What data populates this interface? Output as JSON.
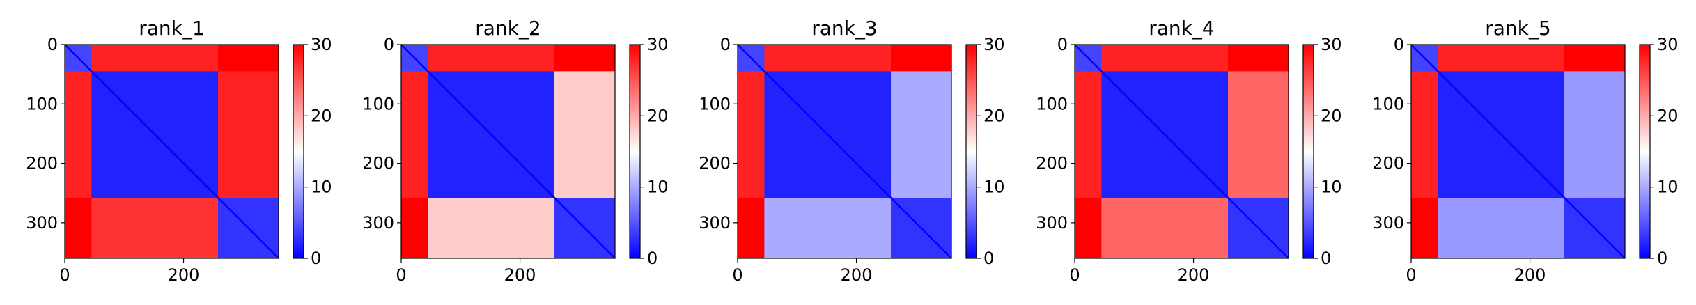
{
  "chart_data": [
    {
      "type": "heatmap",
      "title": "rank_1",
      "x_ticks": [
        0,
        200
      ],
      "y_ticks": [
        0,
        100,
        200,
        300
      ],
      "xlim": [
        0,
        360
      ],
      "ylim": [
        360,
        0
      ],
      "colorbar": {
        "ticks": [
          0,
          10,
          20,
          30
        ],
        "range": [
          0,
          30
        ],
        "colors": [
          "#0000ff",
          "#ffffff",
          "#ff0000"
        ]
      },
      "blocks": [
        {
          "start": 0,
          "end": 45
        },
        {
          "start": 45,
          "end": 258
        },
        {
          "start": 258,
          "end": 360
        }
      ],
      "block_values": [
        [
          4,
          28,
          30
        ],
        [
          28,
          2,
          28
        ],
        [
          30,
          27,
          3
        ]
      ]
    },
    {
      "type": "heatmap",
      "title": "rank_2",
      "x_ticks": [
        0,
        200
      ],
      "y_ticks": [
        0,
        100,
        200,
        300
      ],
      "xlim": [
        0,
        360
      ],
      "ylim": [
        360,
        0
      ],
      "colorbar": {
        "ticks": [
          0,
          10,
          20,
          30
        ],
        "range": [
          0,
          30
        ],
        "colors": [
          "#0000ff",
          "#ffffff",
          "#ff0000"
        ]
      },
      "blocks": [
        {
          "start": 0,
          "end": 45
        },
        {
          "start": 45,
          "end": 258
        },
        {
          "start": 258,
          "end": 360
        }
      ],
      "block_values": [
        [
          4,
          28,
          30
        ],
        [
          28,
          2,
          18
        ],
        [
          30,
          18,
          3
        ]
      ]
    },
    {
      "type": "heatmap",
      "title": "rank_3",
      "x_ticks": [
        0,
        200
      ],
      "y_ticks": [
        0,
        100,
        200,
        300
      ],
      "xlim": [
        0,
        360
      ],
      "ylim": [
        360,
        0
      ],
      "colorbar": {
        "ticks": [
          0,
          10,
          20,
          30
        ],
        "range": [
          0,
          30
        ],
        "colors": [
          "#0000ff",
          "#ffffff",
          "#ff0000"
        ]
      },
      "blocks": [
        {
          "start": 0,
          "end": 45
        },
        {
          "start": 45,
          "end": 258
        },
        {
          "start": 258,
          "end": 360
        }
      ],
      "block_values": [
        [
          4,
          28,
          30
        ],
        [
          28,
          2,
          10
        ],
        [
          30,
          10,
          3
        ]
      ]
    },
    {
      "type": "heatmap",
      "title": "rank_4",
      "x_ticks": [
        0,
        200
      ],
      "y_ticks": [
        0,
        100,
        200,
        300
      ],
      "xlim": [
        0,
        360
      ],
      "ylim": [
        360,
        0
      ],
      "colorbar": {
        "ticks": [
          0,
          10,
          20,
          30
        ],
        "range": [
          0,
          30
        ],
        "colors": [
          "#0000ff",
          "#ffffff",
          "#ff0000"
        ]
      },
      "blocks": [
        {
          "start": 0,
          "end": 45
        },
        {
          "start": 45,
          "end": 258
        },
        {
          "start": 258,
          "end": 360
        }
      ],
      "block_values": [
        [
          4,
          28,
          30
        ],
        [
          28,
          2,
          24
        ],
        [
          30,
          24,
          3
        ]
      ]
    },
    {
      "type": "heatmap",
      "title": "rank_5",
      "x_ticks": [
        0,
        200
      ],
      "y_ticks": [
        0,
        100,
        200,
        300
      ],
      "xlim": [
        0,
        360
      ],
      "ylim": [
        360,
        0
      ],
      "colorbar": {
        "ticks": [
          0,
          10,
          20,
          30
        ],
        "range": [
          0,
          30
        ],
        "colors": [
          "#0000ff",
          "#ffffff",
          "#ff0000"
        ]
      },
      "blocks": [
        {
          "start": 0,
          "end": 45
        },
        {
          "start": 45,
          "end": 258
        },
        {
          "start": 258,
          "end": 360
        }
      ],
      "block_values": [
        [
          4,
          28,
          30
        ],
        [
          28,
          2,
          9
        ],
        [
          30,
          9,
          3
        ]
      ]
    }
  ]
}
